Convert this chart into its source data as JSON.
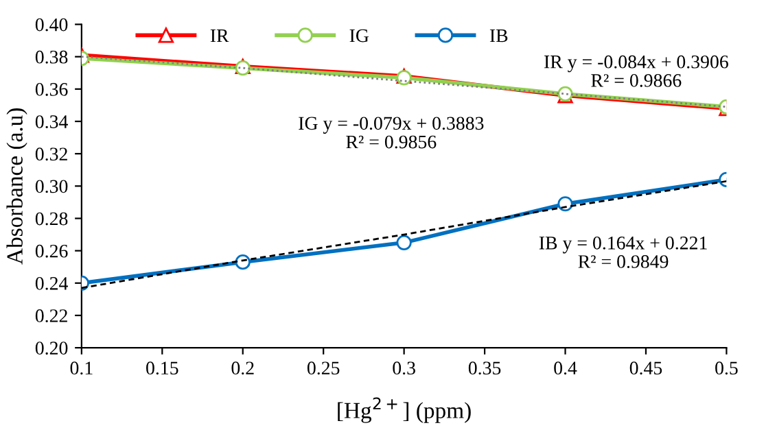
{
  "chart_data": {
    "type": "line",
    "xlabel": "[Hg$^{2+}$] (ppm)",
    "ylabel": "Absorbance (a.u)",
    "x": [
      0.1,
      0.2,
      0.3,
      0.4,
      0.5
    ],
    "series": [
      {
        "name": "IR",
        "color": "#ff0000",
        "marker": "triangle",
        "values": [
          0.381,
          0.374,
          0.368,
          0.356,
          0.348
        ]
      },
      {
        "name": "IG",
        "color": "#92d050",
        "marker": "circle",
        "values": [
          0.379,
          0.373,
          0.367,
          0.357,
          0.349
        ]
      },
      {
        "name": "IB",
        "color": "#0070c0",
        "marker": "circle",
        "values": [
          0.24,
          0.253,
          0.265,
          0.289,
          0.304
        ]
      },
      {
        "type": "line",
        "color": "#808080",
        "line_style": "dotted",
        "marker": "none",
        "values": [
          0.38,
          0.373,
          0.365,
          0.357,
          0.349
        ]
      },
      {
        "type": "line",
        "color": "#000000",
        "line_style": "dashed",
        "marker": "none",
        "values": [
          0.237,
          0.254,
          0.27,
          0.287,
          0.303
        ]
      }
    ],
    "xlim": [
      0.1,
      0.5
    ],
    "xticks": [
      0.1,
      0.15,
      0.2,
      0.25,
      0.3,
      0.35,
      0.4,
      0.45,
      0.5
    ],
    "ylim": [
      0.2,
      0.4
    ],
    "yticks": [
      {
        "value": 0.2,
        "label": "0.20"
      },
      {
        "value": 0.22,
        "label": "0.22"
      },
      {
        "value": 0.24,
        "label": "0.24"
      },
      {
        "value": 0.26,
        "label": "0.26"
      },
      {
        "value": 0.28,
        "label": "0.28"
      },
      {
        "value": 0.3,
        "label": "0.30"
      },
      {
        "value": 0.32,
        "label": "0.32"
      },
      {
        "value": 0.34,
        "label": "0.34"
      },
      {
        "value": 0.36,
        "label": "0.36"
      },
      {
        "value": 0.38,
        "label": "0.38"
      },
      {
        "value": 0.4,
        "label": "0.40"
      }
    ],
    "grid": false,
    "legend": "top left",
    "annotations": [
      "IR y = -0.084x + 0.3906\nR² = 0.9866",
      "IG y = -0.079x + 0.3883\nR² = 0.9856",
      "IB y = 0.164x + 0.221\nR² = 0.9849"
    ]
  }
}
